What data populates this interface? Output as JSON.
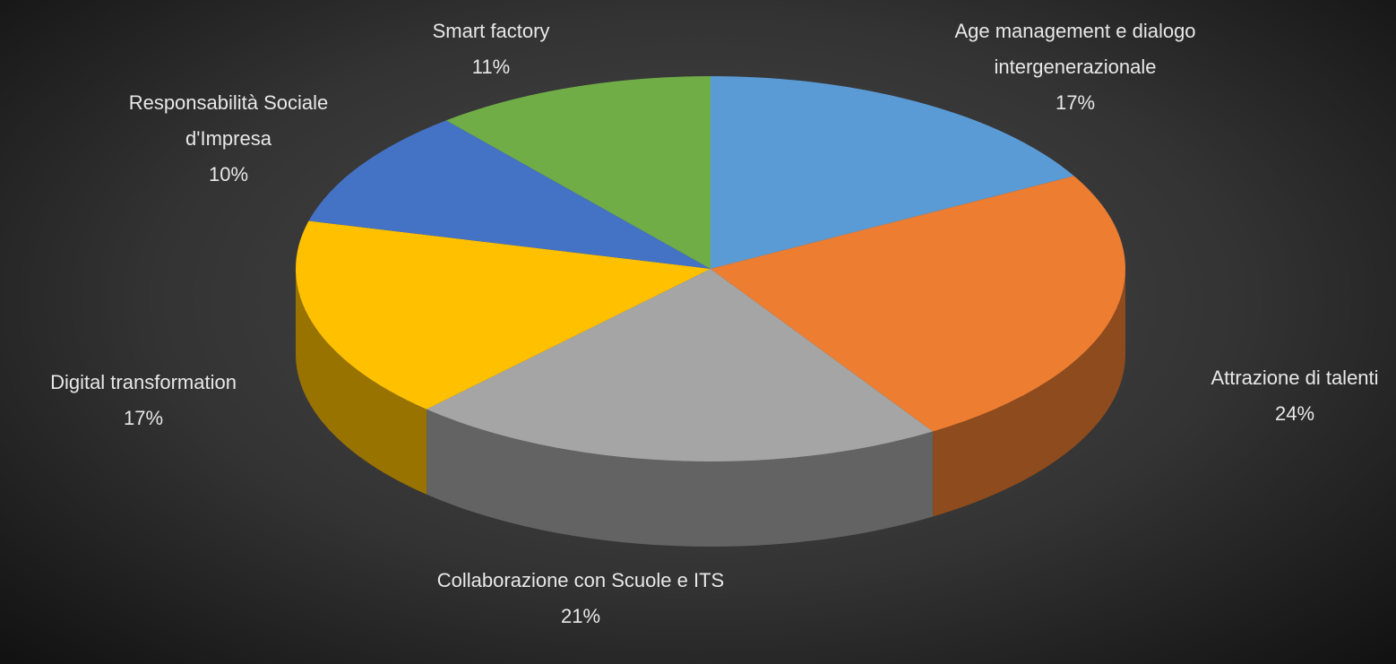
{
  "chart_data": {
    "type": "pie3d",
    "categories": [
      "Age management e dialogo intergenerazionale",
      "Attrazione di talenti",
      "Collaborazione con Scuole e ITS",
      "Digital transformation",
      "Responsabilità Sociale d'Impresa",
      "Smart factory"
    ],
    "values": [
      17,
      24,
      21,
      17,
      10,
      11
    ],
    "value_labels": [
      "17%",
      "24%",
      "21%",
      "17%",
      "10%",
      "11%"
    ],
    "colors": [
      "#5b9bd5",
      "#ed7d31",
      "#a5a5a5",
      "#ffc000",
      "#4472c4",
      "#70ad47"
    ]
  }
}
